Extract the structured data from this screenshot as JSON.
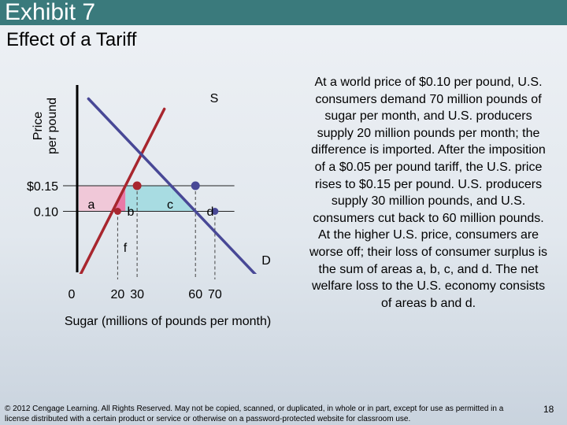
{
  "slide": {
    "title": "Exhibit 7",
    "subtitle": "Effect of a Tariff",
    "explanation": "At a world price of $0.10 per pound, U.S. consumers demand 70 million pounds of sugar per month, and U.S. producers supply 20 million pounds per month; the difference is imported. After the imposition of a $0.05 per pound tariff, the U.S. price rises to $0.15 per pound. U.S. producers supply 30 million pounds, and U.S. consumers cut back to 60 million pounds. At the higher U.S. price, consumers are worse off; their loss of consumer surplus is the sum of areas a, b, c, and d. The net welfare loss to the U.S. economy consists of areas b and d.",
    "copyright": "© 2012 Cengage Learning. All Rights Reserved. May not be copied, scanned, or duplicated, in whole or in part, except for use as permitted in a license distributed with a certain product or service or otherwise on a password-protected website for classroom use.",
    "page_number": "18"
  },
  "colors": {
    "title_bar": "#3a7a7c",
    "supply": "#a8262e",
    "demand": "#484896",
    "area_a": "#f0c8d8",
    "area_b": "#e87aa8",
    "area_c": "#a8dce2",
    "area_d": "#a8dce2"
  },
  "chart_data": {
    "type": "line",
    "xlabel": "Sugar (millions of  pounds per month)",
    "ylabel": "Price per pound",
    "ylabel_lines": [
      "Price",
      "per pound"
    ],
    "x_ticks": [
      {
        "value": 0,
        "label": "0"
      },
      {
        "value": 20,
        "label": "20"
      },
      {
        "value": 30,
        "label": "30"
      },
      {
        "value": 60,
        "label": "60"
      },
      {
        "value": 70,
        "label": "70"
      }
    ],
    "y_ticks": [
      {
        "value": 0.15,
        "label": "$0.15"
      },
      {
        "value": 0.1,
        "label": "0.10"
      }
    ],
    "series": [
      {
        "name": "S",
        "points": [
          [
            0,
            -0.03
          ],
          [
            44,
            0.3
          ]
        ]
      },
      {
        "name": "D",
        "points": [
          [
            5,
            0.32
          ],
          [
            95,
            -0.04
          ]
        ]
      }
    ],
    "points": [
      {
        "series": "S",
        "x": 20,
        "y": 0.1
      },
      {
        "series": "S",
        "x": 30,
        "y": 0.15
      },
      {
        "series": "D",
        "x": 60,
        "y": 0.15
      },
      {
        "series": "D",
        "x": 70,
        "y": 0.1
      }
    ],
    "areas": [
      {
        "label": "a",
        "x_range": [
          0,
          30
        ],
        "y_range": [
          0.1,
          0.15
        ]
      },
      {
        "label": "b",
        "x_range": [
          20,
          30
        ],
        "y_range": [
          0.1,
          0.15
        ]
      },
      {
        "label": "c",
        "x_range": [
          30,
          60
        ],
        "y_range": [
          0.1,
          0.15
        ]
      },
      {
        "label": "d",
        "x_range": [
          60,
          70
        ],
        "y_range": [
          0.1,
          0.15
        ]
      },
      {
        "label": "f"
      }
    ]
  }
}
